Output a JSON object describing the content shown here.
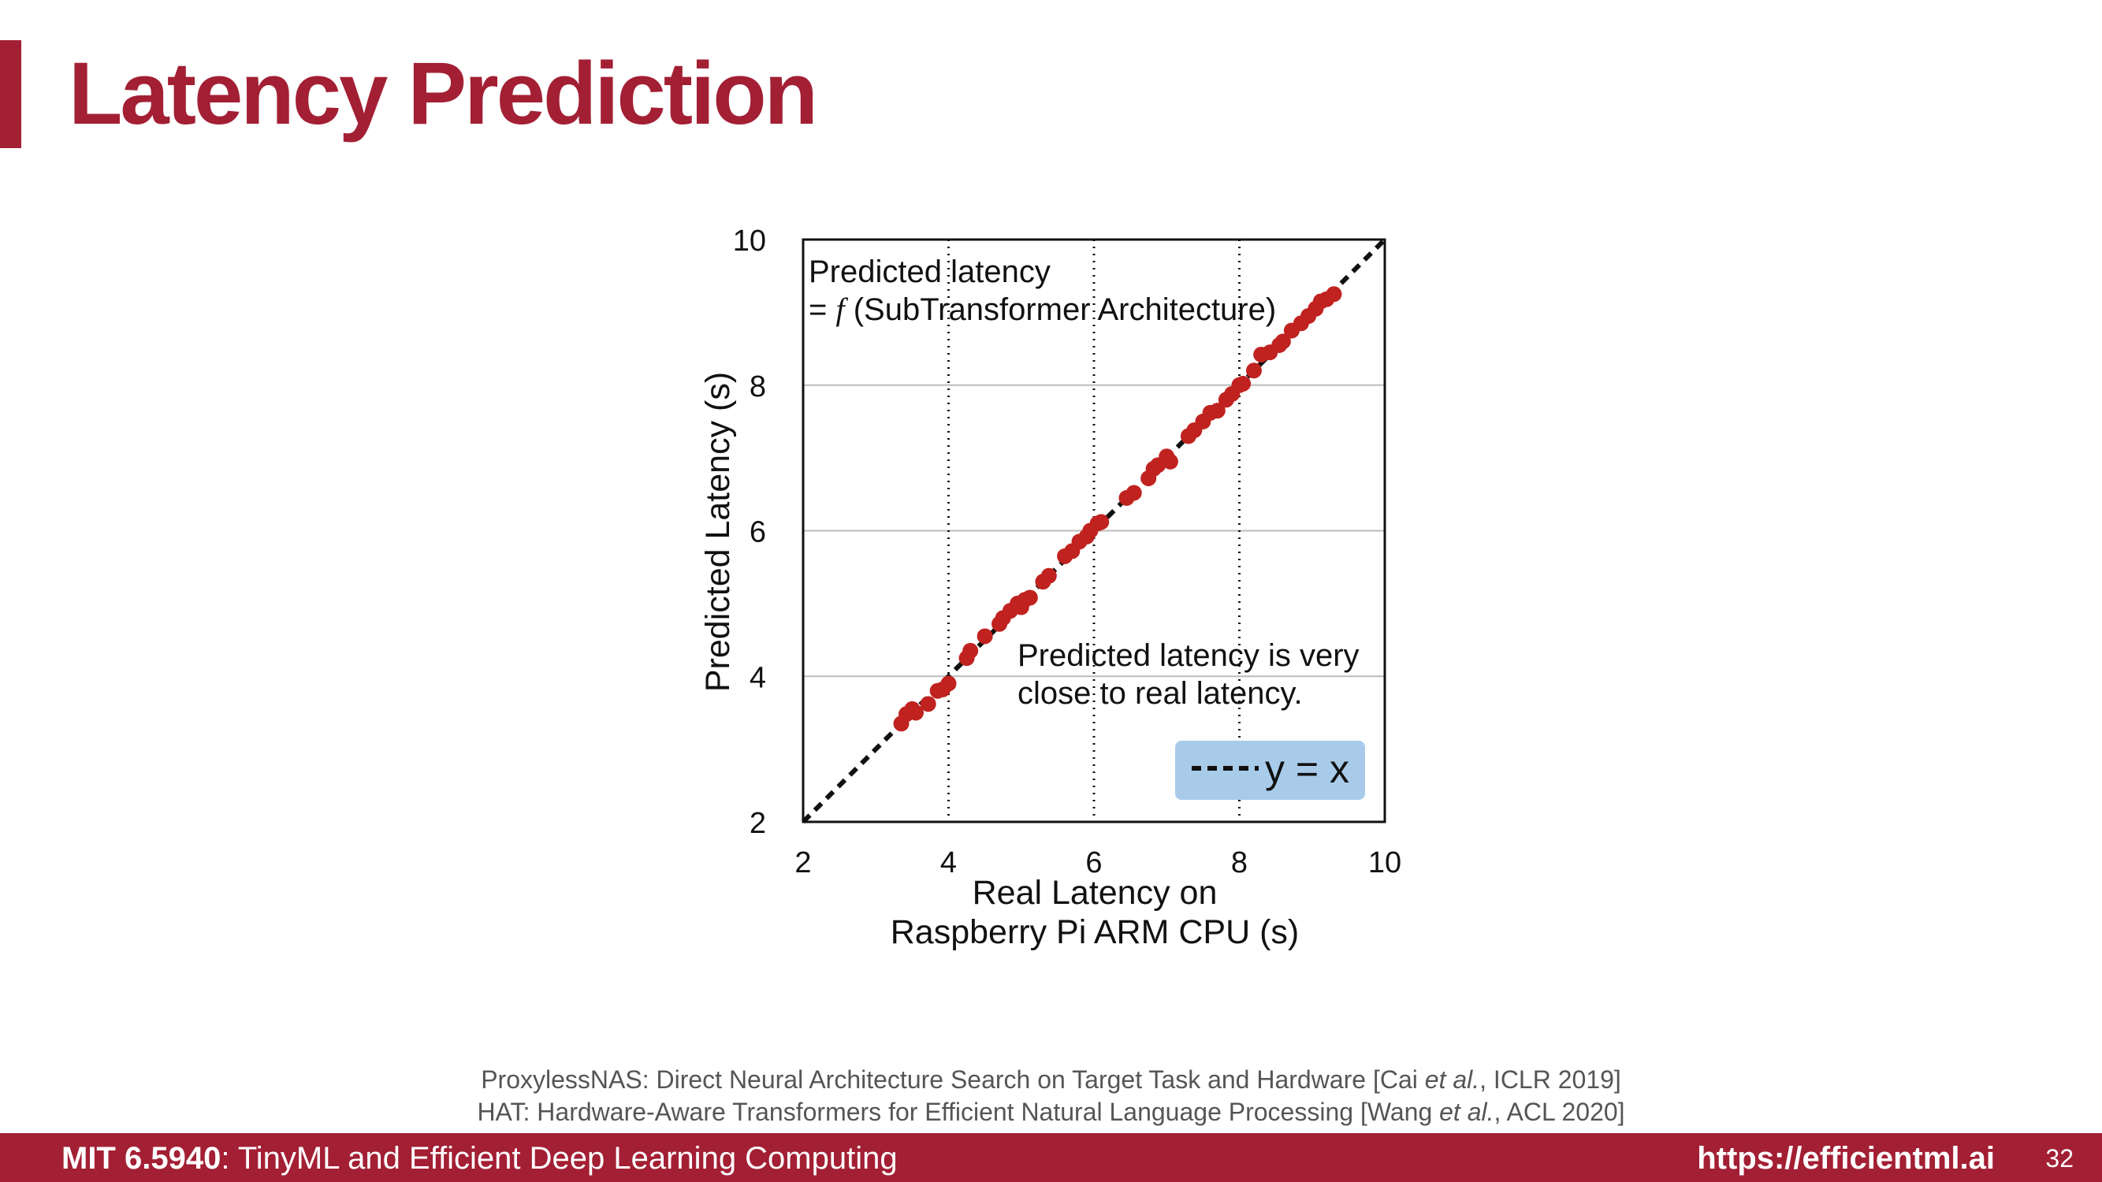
{
  "slide": {
    "title": "Latency Prediction",
    "page_number": "32"
  },
  "footer": {
    "course_code": "MIT 6.5940",
    "course_name": ": TinyML and Efficient Deep Learning Computing",
    "url": "https://efficientml.ai"
  },
  "references": [
    {
      "pre": "ProxylessNAS: Direct Neural Architecture Search on Target Task and Hardware [Cai ",
      "etal": "et al.",
      "post": ", ICLR 2019]"
    },
    {
      "pre": "HAT: Hardware-Aware Transformers for Efficient Natural Language Processing [Wang ",
      "etal": "et al.",
      "post": ", ACL 2020]"
    }
  ],
  "colors": {
    "brand": "#a31f34",
    "points": "#c0221f",
    "legend_bg": "#a9cbea",
    "grid": "#bbbbbb"
  },
  "chart_data": {
    "type": "scatter",
    "xlabel": [
      "Real Latency on",
      "Raspberry Pi ARM CPU (s)"
    ],
    "ylabel": "Predicted Latency (s)",
    "xlim": [
      2,
      10
    ],
    "ylim": [
      2,
      10
    ],
    "xticks": [
      2,
      4,
      6,
      8,
      10
    ],
    "yticks": [
      2,
      4,
      6,
      8,
      10
    ],
    "grid": "horizontal solid gray lines at y ticks; vertical dotted lines at x ticks",
    "reference_line": {
      "label": "y = x",
      "style": "dashed black",
      "legend_position": "bottom-right"
    },
    "annotations": [
      {
        "lines": [
          "Predicted latency",
          "= f (SubTransformer Architecture)"
        ],
        "position": "top-left"
      },
      {
        "lines": [
          "Predicted latency is very",
          "close to real latency."
        ],
        "position": "lower-right"
      }
    ],
    "points": [
      {
        "x": 3.35,
        "y": 3.35
      },
      {
        "x": 3.42,
        "y": 3.48
      },
      {
        "x": 3.5,
        "y": 3.55
      },
      {
        "x": 3.55,
        "y": 3.5
      },
      {
        "x": 3.72,
        "y": 3.62
      },
      {
        "x": 3.85,
        "y": 3.8
      },
      {
        "x": 3.92,
        "y": 3.82
      },
      {
        "x": 4.0,
        "y": 3.9
      },
      {
        "x": 4.25,
        "y": 4.25
      },
      {
        "x": 4.3,
        "y": 4.35
      },
      {
        "x": 4.5,
        "y": 4.55
      },
      {
        "x": 4.7,
        "y": 4.72
      },
      {
        "x": 4.75,
        "y": 4.8
      },
      {
        "x": 4.85,
        "y": 4.9
      },
      {
        "x": 4.95,
        "y": 5.0
      },
      {
        "x": 5.0,
        "y": 4.95
      },
      {
        "x": 5.05,
        "y": 5.05
      },
      {
        "x": 5.12,
        "y": 5.08
      },
      {
        "x": 5.3,
        "y": 5.3
      },
      {
        "x": 5.38,
        "y": 5.38
      },
      {
        "x": 5.6,
        "y": 5.65
      },
      {
        "x": 5.7,
        "y": 5.72
      },
      {
        "x": 5.8,
        "y": 5.85
      },
      {
        "x": 5.9,
        "y": 5.92
      },
      {
        "x": 5.95,
        "y": 6.0
      },
      {
        "x": 6.05,
        "y": 6.1
      },
      {
        "x": 6.1,
        "y": 6.12
      },
      {
        "x": 6.45,
        "y": 6.45
      },
      {
        "x": 6.55,
        "y": 6.52
      },
      {
        "x": 6.75,
        "y": 6.72
      },
      {
        "x": 6.82,
        "y": 6.85
      },
      {
        "x": 6.88,
        "y": 6.9
      },
      {
        "x": 7.0,
        "y": 7.02
      },
      {
        "x": 7.05,
        "y": 6.95
      },
      {
        "x": 7.3,
        "y": 7.3
      },
      {
        "x": 7.38,
        "y": 7.38
      },
      {
        "x": 7.5,
        "y": 7.5
      },
      {
        "x": 7.6,
        "y": 7.62
      },
      {
        "x": 7.7,
        "y": 7.65
      },
      {
        "x": 7.82,
        "y": 7.8
      },
      {
        "x": 7.9,
        "y": 7.88
      },
      {
        "x": 8.0,
        "y": 8.0
      },
      {
        "x": 8.05,
        "y": 8.02
      },
      {
        "x": 8.2,
        "y": 8.2
      },
      {
        "x": 8.3,
        "y": 8.42
      },
      {
        "x": 8.42,
        "y": 8.45
      },
      {
        "x": 8.55,
        "y": 8.55
      },
      {
        "x": 8.6,
        "y": 8.6
      },
      {
        "x": 8.72,
        "y": 8.75
      },
      {
        "x": 8.85,
        "y": 8.85
      },
      {
        "x": 8.95,
        "y": 8.95
      },
      {
        "x": 9.05,
        "y": 9.05
      },
      {
        "x": 9.12,
        "y": 9.15
      },
      {
        "x": 9.2,
        "y": 9.18
      },
      {
        "x": 9.3,
        "y": 9.25
      }
    ]
  }
}
